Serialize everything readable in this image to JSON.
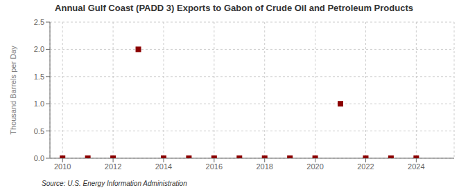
{
  "chart_data": {
    "type": "scatter",
    "title": "Annual Gulf Coast (PADD 3) Exports to Gabon of Crude Oil and Petroleum Products",
    "y_label": "Thousand Barrels per Day",
    "annotations": [
      "Source: U.S. Energy Information Administration"
    ],
    "x": [
      2010,
      2011,
      2012,
      2013,
      2014,
      2015,
      2016,
      2017,
      2018,
      2019,
      2020,
      2021,
      2022,
      2023,
      2024
    ],
    "values": [
      0.0,
      0.0,
      0.0,
      2.0,
      0.0,
      0.0,
      0.0,
      0.0,
      0.0,
      0.0,
      0.0,
      1.0,
      0.0,
      0.0,
      0.0
    ],
    "color": "#8b0000",
    "marker": "square",
    "xlim": [
      2009.5,
      2025.5
    ],
    "xticks": [
      2010,
      2012,
      2014,
      2016,
      2018,
      2020,
      2022,
      2024
    ],
    "ylim": [
      0.0,
      2.5
    ],
    "yticks": [
      {
        "value": 0.0,
        "label": "0.0"
      },
      0.5,
      {
        "value": 1.0,
        "label": "1.0"
      },
      1.5,
      {
        "value": 2.0,
        "label": "2.0"
      },
      2.5
    ],
    "grid": true
  }
}
